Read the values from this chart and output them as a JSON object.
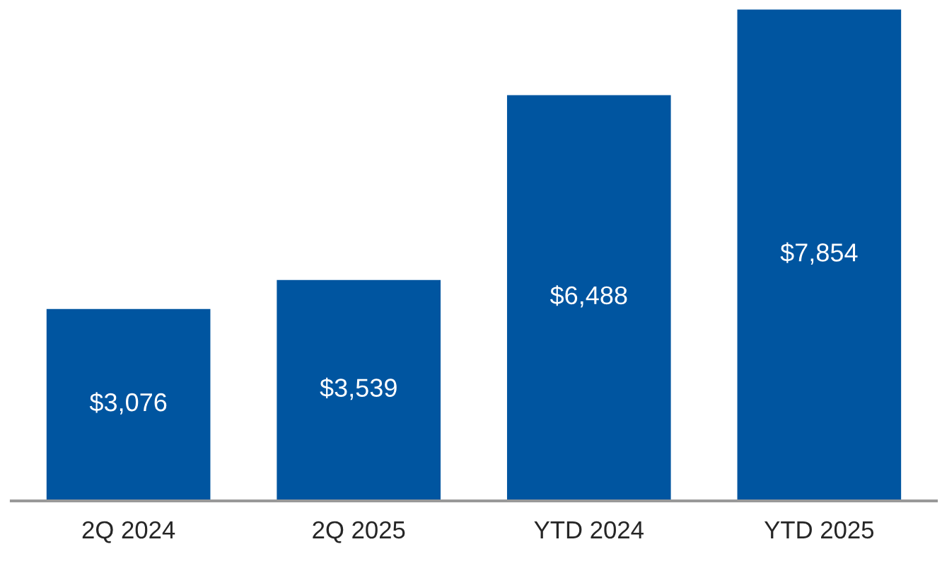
{
  "chart_data": {
    "type": "bar",
    "categories": [
      "2Q 2024",
      "2Q 2025",
      "YTD 2024",
      "YTD 2025"
    ],
    "values": [
      3076,
      3539,
      6488,
      7854
    ],
    "value_labels": [
      "$3,076",
      "$3,539",
      "$6,488",
      "$7,854"
    ],
    "color": "#0055a0",
    "grid": false,
    "legend": false
  }
}
